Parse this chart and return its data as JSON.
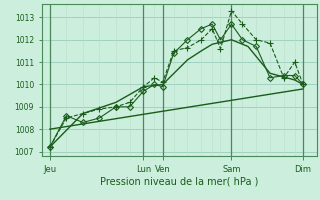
{
  "title": "Pression niveau de la mer( hPa )",
  "bg_color": "#cceedd",
  "grid_color_major": "#99ccbb",
  "grid_color_minor": "#bbddcc",
  "line_color": "#1a5c1a",
  "sep_color": "#4a8a5a",
  "xlim": [
    0,
    10
  ],
  "ylim": [
    1006.8,
    1013.6
  ],
  "yticks": [
    1007,
    1008,
    1009,
    1010,
    1011,
    1012,
    1013
  ],
  "day_positions": [
    0.3,
    3.7,
    4.4,
    6.9,
    9.5
  ],
  "day_labels": [
    "Jeu",
    "Lun",
    "Ven",
    "Sam",
    "Dim"
  ],
  "vline_positions": [
    0.3,
    3.7,
    4.4,
    6.9,
    9.5
  ],
  "lines": [
    {
      "x": [
        0.3,
        0.9,
        1.5,
        2.1,
        2.7,
        3.2,
        3.7,
        4.1,
        4.4,
        4.8,
        5.3,
        5.8,
        6.2,
        6.5,
        6.9,
        7.3,
        7.8,
        8.3,
        8.8,
        9.2,
        9.5
      ],
      "y": [
        1007.2,
        1008.5,
        1008.7,
        1008.9,
        1009.0,
        1009.2,
        1009.9,
        1010.3,
        1010.1,
        1011.5,
        1011.65,
        1012.0,
        1012.5,
        1011.6,
        1013.3,
        1012.7,
        1012.0,
        1011.85,
        1010.3,
        1011.0,
        1010.0
      ],
      "marker": "+",
      "linestyle": "--",
      "lw": 0.8,
      "ms": 4
    },
    {
      "x": [
        0.3,
        0.9,
        1.5,
        2.1,
        2.7,
        3.2,
        3.7,
        4.1,
        4.4,
        4.8,
        5.3,
        5.8,
        6.2,
        6.5,
        6.9,
        7.3,
        7.8,
        8.3,
        8.8,
        9.2,
        9.5
      ],
      "y": [
        1007.2,
        1008.6,
        1008.3,
        1008.5,
        1009.0,
        1009.0,
        1009.7,
        1010.0,
        1009.9,
        1011.4,
        1012.0,
        1012.5,
        1012.7,
        1012.0,
        1012.7,
        1012.0,
        1011.7,
        1010.3,
        1010.4,
        1010.4,
        1010.0
      ],
      "marker": "D",
      "linestyle": "-",
      "lw": 0.8,
      "ms": 3
    },
    {
      "x": [
        0.3,
        1.5,
        2.7,
        3.7,
        4.4,
        5.3,
        5.8,
        6.2,
        6.9,
        7.5,
        8.3,
        9.2,
        9.5
      ],
      "y": [
        1007.2,
        1008.7,
        1009.2,
        1009.9,
        1010.0,
        1011.1,
        1011.5,
        1011.8,
        1012.0,
        1011.7,
        1010.5,
        1010.2,
        1010.0
      ],
      "marker": null,
      "linestyle": "-",
      "lw": 1.0,
      "ms": 0
    },
    {
      "x": [
        0.3,
        9.5
      ],
      "y": [
        1008.0,
        1009.8
      ],
      "marker": null,
      "linestyle": "-",
      "lw": 1.0,
      "ms": 0
    }
  ],
  "minor_x": [
    0.3,
    0.9,
    1.5,
    2.1,
    2.7,
    3.2,
    3.7,
    4.1,
    4.4,
    4.8,
    5.3,
    5.8,
    6.2,
    6.5,
    6.9,
    7.3,
    7.8,
    8.3,
    8.8,
    9.2,
    9.5
  ]
}
